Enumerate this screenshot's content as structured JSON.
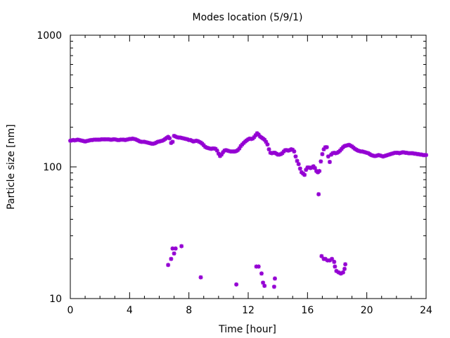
{
  "chart_data": {
    "type": "scatter",
    "title": "Modes location (5/9/1)",
    "xlabel": "Time [hour]",
    "ylabel": "Particle size [nm]",
    "xlim": [
      0,
      24
    ],
    "ylim": [
      10,
      1000
    ],
    "yscale": "log",
    "grid": false,
    "legend": "none",
    "x_ticks": [
      0,
      4,
      8,
      12,
      16,
      20,
      24
    ],
    "y_ticks": [
      10,
      100,
      1000
    ],
    "x_tick_labels": [
      "0",
      "4",
      "8",
      "12",
      "16",
      "20",
      "24"
    ],
    "y_tick_labels": [
      "10",
      "100",
      "1000"
    ],
    "marker_color": "#9400d3",
    "series": [
      {
        "points": [
          [
            0.0,
            158
          ],
          [
            0.1,
            159
          ],
          [
            0.2,
            160
          ],
          [
            0.3,
            159
          ],
          [
            0.4,
            160
          ],
          [
            0.5,
            161
          ],
          [
            0.6,
            160
          ],
          [
            0.7,
            159
          ],
          [
            0.8,
            158
          ],
          [
            0.9,
            157
          ],
          [
            1.0,
            156
          ],
          [
            1.1,
            157
          ],
          [
            1.2,
            158
          ],
          [
            1.3,
            159
          ],
          [
            1.4,
            160
          ],
          [
            1.5,
            160
          ],
          [
            1.6,
            161
          ],
          [
            1.7,
            161
          ],
          [
            1.8,
            161
          ],
          [
            1.9,
            161
          ],
          [
            2.0,
            161
          ],
          [
            2.1,
            162
          ],
          [
            2.2,
            162
          ],
          [
            2.3,
            162
          ],
          [
            2.4,
            162
          ],
          [
            2.5,
            162
          ],
          [
            2.6,
            162
          ],
          [
            2.7,
            161
          ],
          [
            2.8,
            161
          ],
          [
            2.9,
            162
          ],
          [
            3.0,
            162
          ],
          [
            3.1,
            161
          ],
          [
            3.2,
            160
          ],
          [
            3.3,
            160
          ],
          [
            3.4,
            161
          ],
          [
            3.5,
            161
          ],
          [
            3.6,
            161
          ],
          [
            3.7,
            160
          ],
          [
            3.8,
            161
          ],
          [
            3.9,
            162
          ],
          [
            4.0,
            163
          ],
          [
            4.1,
            163
          ],
          [
            4.2,
            164
          ],
          [
            4.3,
            163
          ],
          [
            4.4,
            162
          ],
          [
            4.5,
            160
          ],
          [
            4.6,
            158
          ],
          [
            4.7,
            156
          ],
          [
            4.8,
            155
          ],
          [
            4.9,
            155
          ],
          [
            5.0,
            155
          ],
          [
            5.1,
            154
          ],
          [
            5.2,
            153
          ],
          [
            5.3,
            152
          ],
          [
            5.4,
            151
          ],
          [
            5.5,
            150
          ],
          [
            5.6,
            150
          ],
          [
            5.7,
            151
          ],
          [
            5.8,
            153
          ],
          [
            5.9,
            155
          ],
          [
            6.0,
            156
          ],
          [
            6.1,
            157
          ],
          [
            6.2,
            158
          ],
          [
            6.3,
            160
          ],
          [
            6.4,
            163
          ],
          [
            6.5,
            166
          ],
          [
            6.6,
            169
          ],
          [
            6.7,
            165
          ],
          [
            6.8,
            152
          ],
          [
            6.9,
            155
          ],
          [
            7.0,
            172
          ],
          [
            7.1,
            170
          ],
          [
            7.2,
            168
          ],
          [
            7.3,
            167
          ],
          [
            7.4,
            167
          ],
          [
            7.5,
            166
          ],
          [
            7.6,
            165
          ],
          [
            7.7,
            164
          ],
          [
            7.8,
            163
          ],
          [
            7.9,
            162
          ],
          [
            8.0,
            160
          ],
          [
            8.1,
            160
          ],
          [
            8.2,
            158
          ],
          [
            8.3,
            156
          ],
          [
            8.4,
            157
          ],
          [
            8.5,
            158
          ],
          [
            8.6,
            157
          ],
          [
            8.7,
            155
          ],
          [
            8.8,
            153
          ],
          [
            8.9,
            150
          ],
          [
            9.0,
            146
          ],
          [
            9.1,
            142
          ],
          [
            9.2,
            140
          ],
          [
            9.3,
            139
          ],
          [
            9.4,
            138
          ],
          [
            9.5,
            137
          ],
          [
            9.6,
            138
          ],
          [
            9.7,
            138
          ],
          [
            9.8,
            137
          ],
          [
            9.9,
            133
          ],
          [
            10.0,
            126
          ],
          [
            10.1,
            121
          ],
          [
            10.2,
            124
          ],
          [
            10.3,
            129
          ],
          [
            10.4,
            133
          ],
          [
            10.5,
            134
          ],
          [
            10.6,
            133
          ],
          [
            10.7,
            132
          ],
          [
            10.8,
            131
          ],
          [
            10.9,
            131
          ],
          [
            11.0,
            131
          ],
          [
            11.1,
            131
          ],
          [
            11.2,
            132
          ],
          [
            11.3,
            134
          ],
          [
            11.4,
            138
          ],
          [
            11.5,
            144
          ],
          [
            11.6,
            148
          ],
          [
            11.7,
            152
          ],
          [
            11.8,
            156
          ],
          [
            11.9,
            159
          ],
          [
            12.0,
            162
          ],
          [
            12.1,
            164
          ],
          [
            12.2,
            163
          ],
          [
            12.3,
            164
          ],
          [
            12.4,
            168
          ],
          [
            12.5,
            174
          ],
          [
            12.6,
            180
          ],
          [
            12.7,
            176
          ],
          [
            12.8,
            170
          ],
          [
            12.9,
            167
          ],
          [
            13.0,
            164
          ],
          [
            13.1,
            161
          ],
          [
            13.2,
            155
          ],
          [
            13.3,
            148
          ],
          [
            13.4,
            136
          ],
          [
            13.5,
            128
          ],
          [
            13.6,
            127
          ],
          [
            13.7,
            128
          ],
          [
            13.8,
            128
          ],
          [
            13.9,
            126
          ],
          [
            14.0,
            124
          ],
          [
            14.1,
            124
          ],
          [
            14.2,
            125
          ],
          [
            14.3,
            127
          ],
          [
            14.4,
            131
          ],
          [
            14.5,
            134
          ],
          [
            14.6,
            134
          ],
          [
            14.7,
            133
          ],
          [
            14.8,
            134
          ],
          [
            14.9,
            136
          ],
          [
            15.0,
            135
          ],
          [
            15.1,
            131
          ],
          [
            15.2,
            120
          ],
          [
            15.3,
            111
          ],
          [
            15.4,
            105
          ],
          [
            15.5,
            97
          ],
          [
            15.6,
            91
          ],
          [
            15.7,
            89
          ],
          [
            15.8,
            87
          ],
          [
            15.9,
            95
          ],
          [
            16.0,
            99
          ],
          [
            16.1,
            99
          ],
          [
            16.2,
            98
          ],
          [
            16.3,
            99
          ],
          [
            16.4,
            101
          ],
          [
            16.5,
            98
          ],
          [
            16.6,
            93
          ],
          [
            16.7,
            91
          ],
          [
            16.8,
            93
          ],
          [
            16.9,
            110
          ],
          [
            17.0,
            125
          ],
          [
            17.1,
            136
          ],
          [
            17.2,
            141
          ],
          [
            17.3,
            141
          ],
          [
            17.4,
            120
          ],
          [
            17.5,
            109
          ],
          [
            17.6,
            124
          ],
          [
            17.7,
            127
          ],
          [
            17.8,
            128
          ],
          [
            17.9,
            127
          ],
          [
            18.0,
            128
          ],
          [
            18.1,
            130
          ],
          [
            18.2,
            133
          ],
          [
            18.3,
            137
          ],
          [
            18.4,
            141
          ],
          [
            18.5,
            144
          ],
          [
            18.6,
            145
          ],
          [
            18.7,
            146
          ],
          [
            18.8,
            147
          ],
          [
            18.9,
            145
          ],
          [
            19.0,
            143
          ],
          [
            19.1,
            140
          ],
          [
            19.2,
            137
          ],
          [
            19.3,
            135
          ],
          [
            19.4,
            133
          ],
          [
            19.5,
            132
          ],
          [
            19.6,
            131
          ],
          [
            19.7,
            131
          ],
          [
            19.8,
            130
          ],
          [
            19.9,
            129
          ],
          [
            20.0,
            128
          ],
          [
            20.1,
            127
          ],
          [
            20.2,
            125
          ],
          [
            20.3,
            123
          ],
          [
            20.4,
            122
          ],
          [
            20.5,
            121
          ],
          [
            20.6,
            121
          ],
          [
            20.7,
            122
          ],
          [
            20.8,
            123
          ],
          [
            20.9,
            122
          ],
          [
            21.0,
            121
          ],
          [
            21.1,
            120
          ],
          [
            21.2,
            121
          ],
          [
            21.3,
            122
          ],
          [
            21.4,
            123
          ],
          [
            21.5,
            124
          ],
          [
            21.6,
            125
          ],
          [
            21.7,
            126
          ],
          [
            21.8,
            127
          ],
          [
            21.9,
            128
          ],
          [
            22.0,
            128
          ],
          [
            22.1,
            128
          ],
          [
            22.2,
            127
          ],
          [
            22.3,
            128
          ],
          [
            22.4,
            129
          ],
          [
            22.5,
            129
          ],
          [
            22.6,
            128
          ],
          [
            22.7,
            128
          ],
          [
            22.8,
            127
          ],
          [
            22.9,
            127
          ],
          [
            23.0,
            127
          ],
          [
            23.1,
            127
          ],
          [
            23.2,
            126
          ],
          [
            23.3,
            126
          ],
          [
            23.4,
            125
          ],
          [
            23.5,
            125
          ],
          [
            23.6,
            124
          ],
          [
            23.7,
            124
          ],
          [
            23.8,
            123
          ],
          [
            23.9,
            123
          ],
          [
            24.0,
            123
          ],
          [
            16.75,
            62
          ],
          [
            6.6,
            18
          ],
          [
            6.8,
            20
          ],
          [
            6.9,
            24
          ],
          [
            7.0,
            22
          ],
          [
            7.1,
            24
          ],
          [
            7.5,
            25
          ],
          [
            8.8,
            14.5
          ],
          [
            11.2,
            12.8
          ],
          [
            12.55,
            17.5
          ],
          [
            12.7,
            17.5
          ],
          [
            12.9,
            15.5
          ],
          [
            13.0,
            13.2
          ],
          [
            13.1,
            12.5
          ],
          [
            13.75,
            12.3
          ],
          [
            13.8,
            14.2
          ],
          [
            16.95,
            21
          ],
          [
            17.1,
            20
          ],
          [
            17.2,
            20
          ],
          [
            17.35,
            19.5
          ],
          [
            17.5,
            19.5
          ],
          [
            17.65,
            20
          ],
          [
            17.8,
            19
          ],
          [
            17.85,
            17.5
          ],
          [
            17.95,
            16.2
          ],
          [
            18.1,
            15.8
          ],
          [
            18.25,
            15.5
          ],
          [
            18.4,
            15.8
          ],
          [
            18.5,
            16.8
          ],
          [
            18.55,
            18.2
          ]
        ]
      }
    ]
  }
}
